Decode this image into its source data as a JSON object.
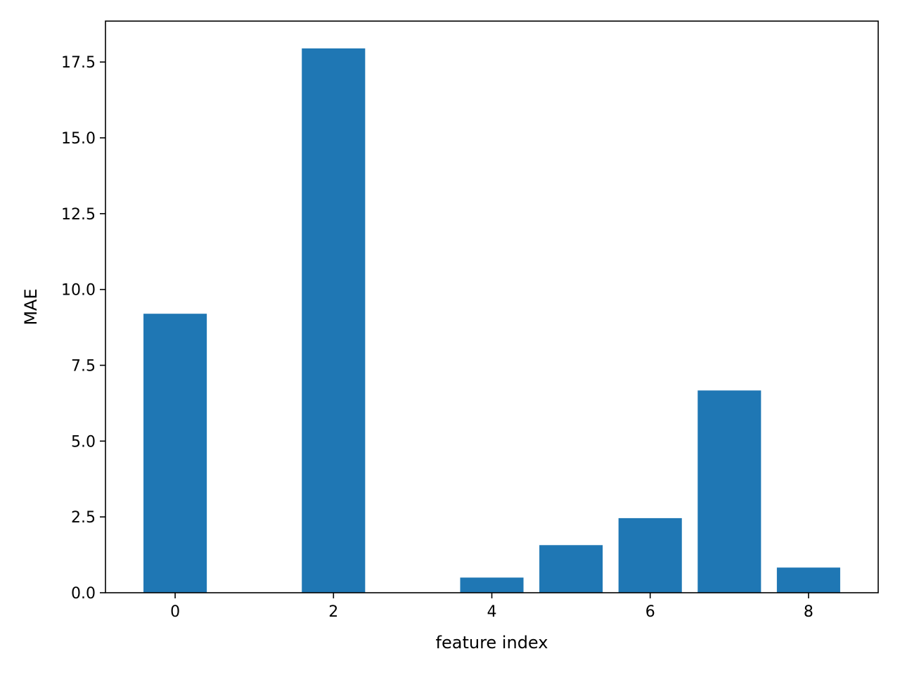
{
  "chart_data": {
    "type": "bar",
    "x": [
      0,
      2,
      4,
      5,
      6,
      7,
      8
    ],
    "values": [
      9.2,
      17.95,
      0.5,
      1.57,
      2.46,
      6.67,
      0.83
    ],
    "title": "",
    "xlabel": "feature index",
    "ylabel": "MAE",
    "xlim": [
      -0.88,
      8.88
    ],
    "ylim": [
      0,
      18.85
    ],
    "xticks": [
      0,
      2,
      4,
      6,
      8
    ],
    "xtick_labels": [
      "0",
      "2",
      "4",
      "6",
      "8"
    ],
    "yticks": [
      0,
      2.5,
      5,
      7.5,
      10,
      12.5,
      15,
      17.5
    ],
    "ytick_labels": [
      "0.0",
      "2.5",
      "5.0",
      "7.5",
      "10.0",
      "12.5",
      "15.0",
      "17.5"
    ],
    "bar_width": 0.8,
    "grid": false,
    "legend": "none",
    "colors": {
      "bar": "#1f77b4",
      "axis": "#000000",
      "background": "#ffffff"
    }
  }
}
